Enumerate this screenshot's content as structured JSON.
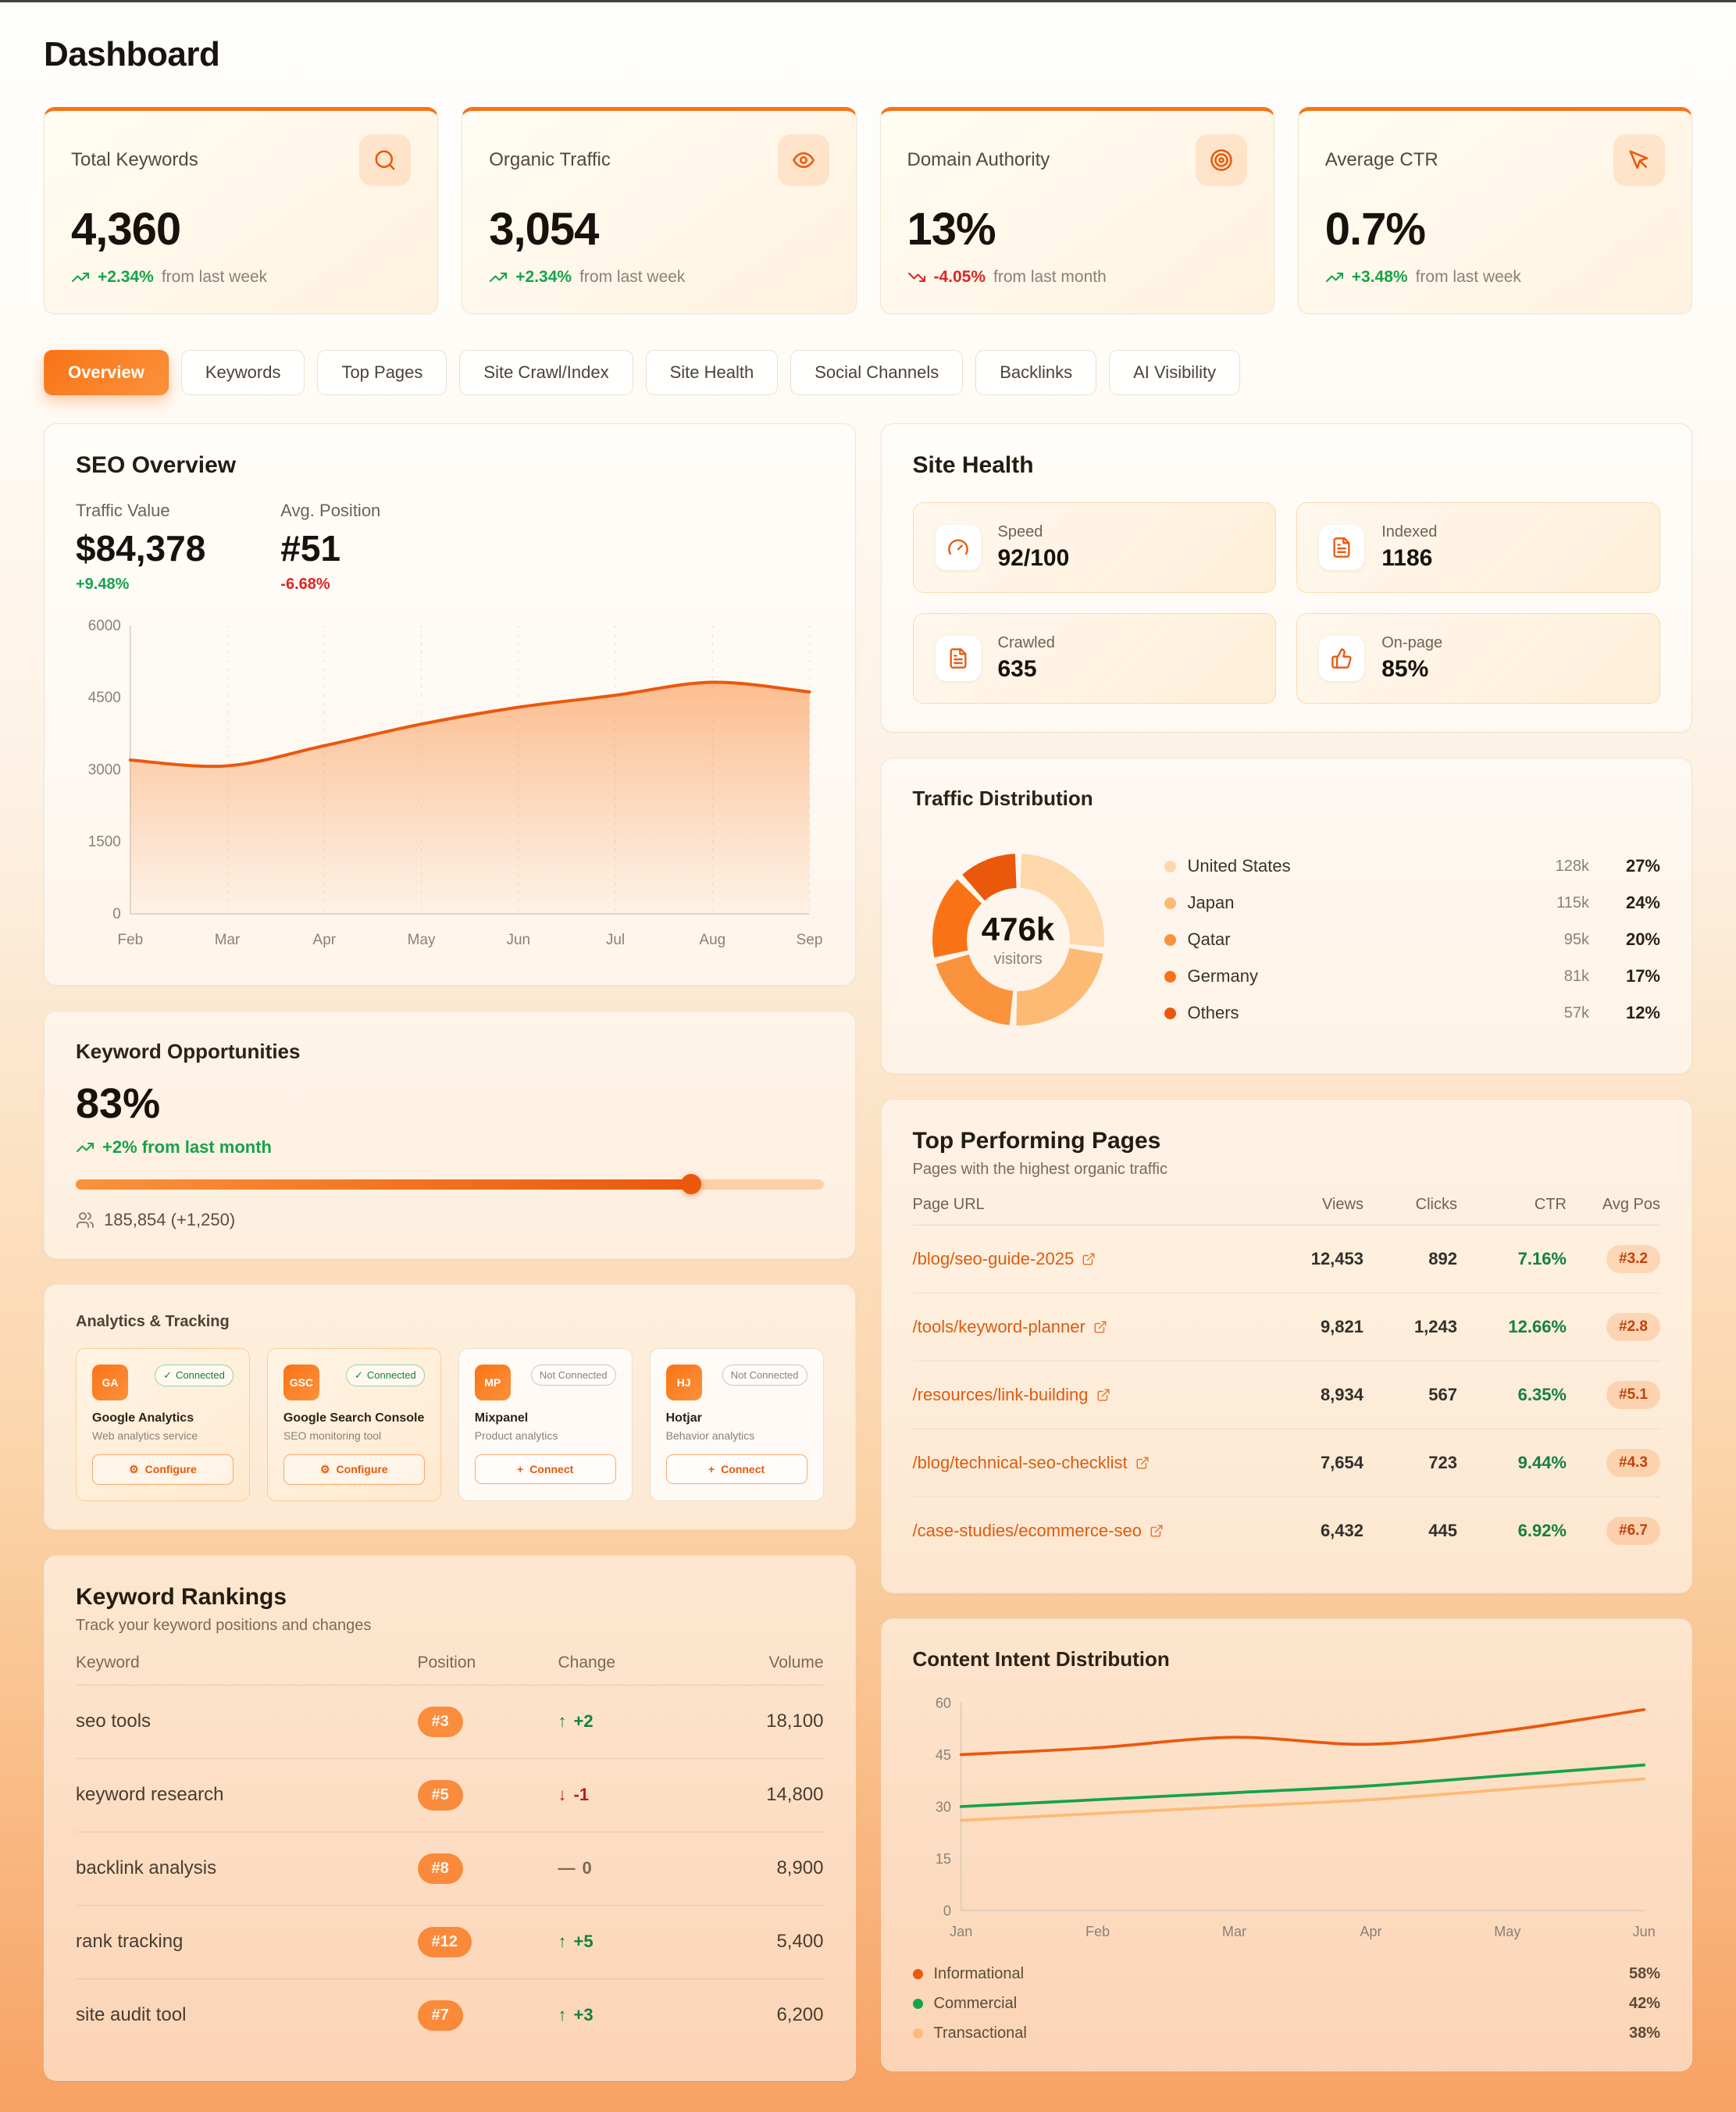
{
  "page": {
    "title": "Dashboard"
  },
  "colors": {
    "accent": "#f97316",
    "accent_dark": "#ea580c",
    "green": "#16a34a",
    "red": "#dc2626"
  },
  "stat_cards": [
    {
      "label": "Total Keywords",
      "value": "4,360",
      "change": "+2.34%",
      "period": "from last week",
      "icon": "search-icon",
      "trend": "up"
    },
    {
      "label": "Organic Traffic",
      "value": "3,054",
      "change": "+2.34%",
      "period": "from last week",
      "icon": "eye-icon",
      "trend": "up"
    },
    {
      "label": "Domain Authority",
      "value": "13%",
      "change": "-4.05%",
      "period": "from last month",
      "icon": "target-icon",
      "trend": "down"
    },
    {
      "label": "Average CTR",
      "value": "0.7%",
      "change": "+3.48%",
      "period": "from last week",
      "icon": "cursor-icon",
      "trend": "up"
    }
  ],
  "tabs": [
    {
      "label": "Overview",
      "active": true
    },
    {
      "label": "Keywords",
      "active": false
    },
    {
      "label": "Top Pages",
      "active": false
    },
    {
      "label": "Site Crawl/Index",
      "active": false
    },
    {
      "label": "Site Health",
      "active": false
    },
    {
      "label": "Social Channels",
      "active": false
    },
    {
      "label": "Backlinks",
      "active": false
    },
    {
      "label": "AI Visibility",
      "active": false
    }
  ],
  "seo_overview": {
    "title": "SEO Overview",
    "metrics": [
      {
        "label": "Traffic Value",
        "value": "$84,378",
        "change": "+9.48%",
        "trend": "up"
      },
      {
        "label": "Avg. Position",
        "value": "#51",
        "change": "-6.68%",
        "trend": "down"
      }
    ],
    "chart_data": {
      "type": "area",
      "x": [
        "Feb",
        "Mar",
        "Apr",
        "May",
        "Jun",
        "Jul",
        "Aug",
        "Sep"
      ],
      "values": [
        3200,
        3080,
        3500,
        3950,
        4300,
        4550,
        4820,
        4620
      ],
      "ylim": [
        0,
        6000
      ],
      "yticks": [
        0,
        1500,
        3000,
        4500,
        6000
      ],
      "line_color": "#ea580c"
    }
  },
  "site_health": {
    "title": "Site Health",
    "tiles": [
      {
        "label": "Speed",
        "value": "92/100",
        "icon": "gauge-icon"
      },
      {
        "label": "Indexed",
        "value": "1186",
        "icon": "document-icon"
      },
      {
        "label": "Crawled",
        "value": "635",
        "icon": "document-icon"
      },
      {
        "label": "On-page",
        "value": "85%",
        "icon": "thumbs-up-icon"
      }
    ]
  },
  "traffic_distribution": {
    "title": "Traffic Distribution",
    "center_value": "476k",
    "center_label": "visitors",
    "chart_data": {
      "type": "pie",
      "segments": [
        {
          "label": "United States",
          "visitors": "128k",
          "percent": 27,
          "percent_label": "27%",
          "color": "#fed7aa"
        },
        {
          "label": "Japan",
          "visitors": "115k",
          "percent": 24,
          "percent_label": "24%",
          "color": "#fdba74"
        },
        {
          "label": "Qatar",
          "visitors": "95k",
          "percent": 20,
          "percent_label": "20%",
          "color": "#fb923c"
        },
        {
          "label": "Germany",
          "visitors": "81k",
          "percent": 17,
          "percent_label": "17%",
          "color": "#f97316"
        },
        {
          "label": "Others",
          "visitors": "57k",
          "percent": 12,
          "percent_label": "12%",
          "color": "#ea580c"
        }
      ]
    }
  },
  "keyword_opportunities": {
    "title": "Keyword Opportunities",
    "value": "83%",
    "change": "+2% from last month",
    "progress_percent": 83,
    "footnote": "185,854 (+1,250)"
  },
  "analytics_tracking": {
    "title": "Analytics & Tracking",
    "integrations": [
      {
        "abbr": "GA",
        "name": "Google Analytics",
        "description": "Web analytics service",
        "status": "Connected",
        "action": "Configure",
        "connected": true
      },
      {
        "abbr": "GSC",
        "name": "Google Search Console",
        "description": "SEO monitoring tool",
        "status": "Connected",
        "action": "Configure",
        "connected": true
      },
      {
        "abbr": "MP",
        "name": "Mixpanel",
        "description": "Product analytics",
        "status": "Not Connected",
        "action": "Connect",
        "connected": false
      },
      {
        "abbr": "HJ",
        "name": "Hotjar",
        "description": "Behavior analytics",
        "status": "Not Connected",
        "action": "Connect",
        "connected": false
      }
    ]
  },
  "top_pages": {
    "title": "Top Performing Pages",
    "subtitle": "Pages with the highest organic traffic",
    "columns": [
      "Page URL",
      "Views",
      "Clicks",
      "CTR",
      "Avg Pos"
    ],
    "rows": [
      {
        "url": "/blog/seo-guide-2025",
        "views": "12,453",
        "clicks": "892",
        "ctr": "7.16%",
        "avg_pos": "#3.2"
      },
      {
        "url": "/tools/keyword-planner",
        "views": "9,821",
        "clicks": "1,243",
        "ctr": "12.66%",
        "avg_pos": "#2.8"
      },
      {
        "url": "/resources/link-building",
        "views": "8,934",
        "clicks": "567",
        "ctr": "6.35%",
        "avg_pos": "#5.1"
      },
      {
        "url": "/blog/technical-seo-checklist",
        "views": "7,654",
        "clicks": "723",
        "ctr": "9.44%",
        "avg_pos": "#4.3"
      },
      {
        "url": "/case-studies/ecommerce-seo",
        "views": "6,432",
        "clicks": "445",
        "ctr": "6.92%",
        "avg_pos": "#6.7"
      }
    ]
  },
  "keyword_rankings": {
    "title": "Keyword Rankings",
    "subtitle": "Track your keyword positions and changes",
    "columns": [
      "Keyword",
      "Position",
      "Change",
      "Volume"
    ],
    "rows": [
      {
        "keyword": "seo tools",
        "position": "#3",
        "arrow": "↑",
        "change": "+2",
        "direction": "up",
        "volume": "18,100"
      },
      {
        "keyword": "keyword research",
        "position": "#5",
        "arrow": "↓",
        "change": "-1",
        "direction": "down",
        "volume": "14,800"
      },
      {
        "keyword": "backlink analysis",
        "position": "#8",
        "arrow": "—",
        "change": "0",
        "direction": "flat",
        "volume": "8,900"
      },
      {
        "keyword": "rank tracking",
        "position": "#12",
        "arrow": "↑",
        "change": "+5",
        "direction": "up",
        "volume": "5,400"
      },
      {
        "keyword": "site audit tool",
        "position": "#7",
        "arrow": "↑",
        "change": "+3",
        "direction": "up",
        "volume": "6,200"
      }
    ]
  },
  "content_intent": {
    "title": "Content Intent Distribution",
    "chart_data": {
      "type": "line",
      "x": [
        "Jan",
        "Feb",
        "Mar",
        "Apr",
        "May",
        "Jun"
      ],
      "series": [
        {
          "name": "Informational",
          "values": [
            45,
            47,
            50,
            48,
            52,
            58
          ],
          "color": "#ea580c",
          "percent": "58%"
        },
        {
          "name": "Commercial",
          "values": [
            30,
            32,
            34,
            36,
            39,
            42
          ],
          "color": "#16a34a",
          "percent": "42%"
        },
        {
          "name": "Transactional",
          "values": [
            26,
            28,
            30,
            32,
            35,
            38
          ],
          "color": "#fdba74",
          "percent": "38%"
        }
      ],
      "ylim": [
        0,
        60
      ],
      "yticks": [
        0,
        15,
        30,
        45,
        60
      ]
    }
  }
}
